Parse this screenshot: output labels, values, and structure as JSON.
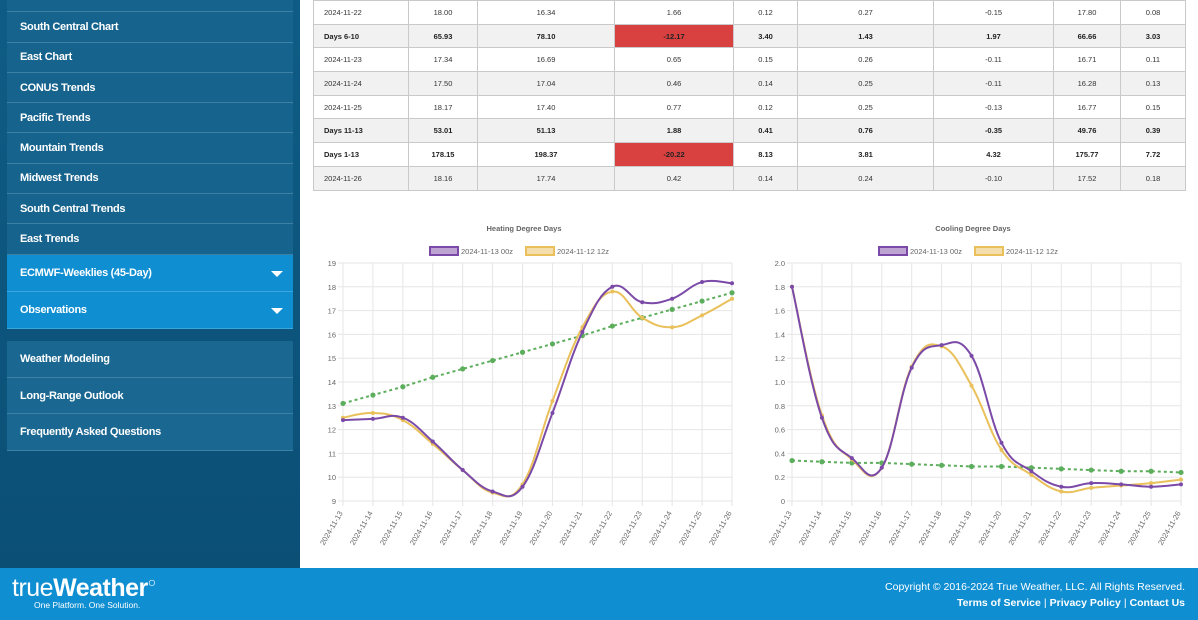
{
  "sidebar": {
    "items_top": [
      {
        "label": "South Central Chart"
      },
      {
        "label": "East Chart"
      },
      {
        "label": "CONUS Trends"
      },
      {
        "label": "Pacific Trends"
      },
      {
        "label": "Mountain Trends"
      },
      {
        "label": "Midwest Trends"
      },
      {
        "label": "South Central Trends"
      },
      {
        "label": "East Trends"
      }
    ],
    "dropdowns": [
      {
        "label": "ECMWF-Weeklies (45-Day)"
      },
      {
        "label": "Observations"
      }
    ],
    "items_bottom": [
      {
        "label": "Weather Modeling"
      },
      {
        "label": "Long-Range Outlook"
      },
      {
        "label": "Frequently Asked Questions"
      }
    ]
  },
  "table": {
    "rows": [
      {
        "cells": [
          "2024-11-22",
          "18.00",
          "16.34",
          "1.66",
          "0.12",
          "0.27",
          "-0.15",
          "17.80",
          "0.08"
        ],
        "bold": false,
        "shade": false,
        "neg_col": -1
      },
      {
        "cells": [
          "Days 6-10",
          "65.93",
          "78.10",
          "-12.17",
          "3.40",
          "1.43",
          "1.97",
          "66.66",
          "3.03"
        ],
        "bold": true,
        "shade": true,
        "neg_col": 3
      },
      {
        "cells": [
          "2024-11-23",
          "17.34",
          "16.69",
          "0.65",
          "0.15",
          "0.26",
          "-0.11",
          "16.71",
          "0.11"
        ],
        "bold": false,
        "shade": false,
        "neg_col": -1
      },
      {
        "cells": [
          "2024-11-24",
          "17.50",
          "17.04",
          "0.46",
          "0.14",
          "0.25",
          "-0.11",
          "16.28",
          "0.13"
        ],
        "bold": false,
        "shade": true,
        "neg_col": -1
      },
      {
        "cells": [
          "2024-11-25",
          "18.17",
          "17.40",
          "0.77",
          "0.12",
          "0.25",
          "-0.13",
          "16.77",
          "0.15"
        ],
        "bold": false,
        "shade": false,
        "neg_col": -1
      },
      {
        "cells": [
          "Days 11-13",
          "53.01",
          "51.13",
          "1.88",
          "0.41",
          "0.76",
          "-0.35",
          "49.76",
          "0.39"
        ],
        "bold": true,
        "shade": true,
        "neg_col": -1
      },
      {
        "cells": [
          "Days 1-13",
          "178.15",
          "198.37",
          "-20.22",
          "8.13",
          "3.81",
          "4.32",
          "175.77",
          "7.72"
        ],
        "bold": true,
        "shade": false,
        "neg_col": 3
      },
      {
        "cells": [
          "2024-11-26",
          "18.16",
          "17.74",
          "0.42",
          "0.14",
          "0.24",
          "-0.10",
          "17.52",
          "0.18"
        ],
        "bold": false,
        "shade": true,
        "neg_col": -1
      }
    ]
  },
  "colors": {
    "series_1": "#7b4aa8",
    "series_2": "#e9c05a",
    "trend": "#5cae5c",
    "negative": "#d94040"
  },
  "chart_data": [
    {
      "type": "line",
      "title": "Heating Degree Days",
      "x": [
        "2024-11-13",
        "2024-11-14",
        "2024-11-15",
        "2024-11-16",
        "2024-11-17",
        "2024-11-18",
        "2024-11-19",
        "2024-11-20",
        "2024-11-21",
        "2024-11-22",
        "2024-11-23",
        "2024-11-24",
        "2024-11-25",
        "2024-11-26"
      ],
      "series": [
        {
          "name": "2024-11-13 00z",
          "values": [
            12.4,
            12.45,
            12.5,
            11.5,
            10.3,
            9.4,
            9.6,
            12.7,
            16.1,
            18.0,
            17.35,
            17.5,
            18.2,
            18.15
          ]
        },
        {
          "name": "2024-11-12 12z",
          "values": [
            12.5,
            12.7,
            12.4,
            11.4,
            10.3,
            9.35,
            9.7,
            13.2,
            16.3,
            17.8,
            16.7,
            16.3,
            16.8,
            17.5
          ]
        }
      ],
      "trend": [
        13.1,
        13.45,
        13.8,
        14.2,
        14.55,
        14.9,
        15.25,
        15.6,
        15.95,
        16.35,
        16.7,
        17.05,
        17.4,
        17.75
      ],
      "ylim": [
        9,
        19
      ],
      "yticks": [
        "19",
        "18",
        "17",
        "16",
        "15",
        "14",
        "13",
        "12",
        "11",
        "10",
        "9"
      ],
      "grid": true,
      "legend": "top"
    },
    {
      "type": "line",
      "title": "Cooling Degree Days",
      "x": [
        "2024-11-13",
        "2024-11-14",
        "2024-11-15",
        "2024-11-16",
        "2024-11-17",
        "2024-11-18",
        "2024-11-19",
        "2024-11-20",
        "2024-11-21",
        "2024-11-22",
        "2024-11-23",
        "2024-11-24",
        "2024-11-25",
        "2024-11-26"
      ],
      "series": [
        {
          "name": "2024-11-13 00z",
          "values": [
            1.8,
            0.7,
            0.36,
            0.28,
            1.12,
            1.31,
            1.22,
            0.49,
            0.25,
            0.12,
            0.15,
            0.14,
            0.12,
            0.14
          ]
        },
        {
          "name": "2024-11-12 12z",
          "values": [
            1.8,
            0.72,
            0.35,
            0.28,
            1.13,
            1.3,
            0.97,
            0.43,
            0.22,
            0.08,
            0.11,
            0.13,
            0.15,
            0.18
          ]
        }
      ],
      "trend": [
        0.34,
        0.33,
        0.32,
        0.32,
        0.31,
        0.3,
        0.29,
        0.29,
        0.28,
        0.27,
        0.26,
        0.25,
        0.25,
        0.24
      ],
      "ylim": [
        0,
        2.0
      ],
      "yticks": [
        "2.0",
        "1.8",
        "1.6",
        "1.4",
        "1.2",
        "1.0",
        "0.8",
        "0.6",
        "0.4",
        "0.2",
        "0"
      ],
      "grid": true,
      "legend": "top"
    }
  ],
  "footer": {
    "logo_light": "true",
    "logo_heavy": "Weather",
    "tagline": "One Platform. One Solution.",
    "copyright": "Copyright © 2016-2024 True Weather, LLC. All Rights Reserved.",
    "links": [
      "Terms of Service",
      "Privacy Policy",
      "Contact Us"
    ]
  }
}
